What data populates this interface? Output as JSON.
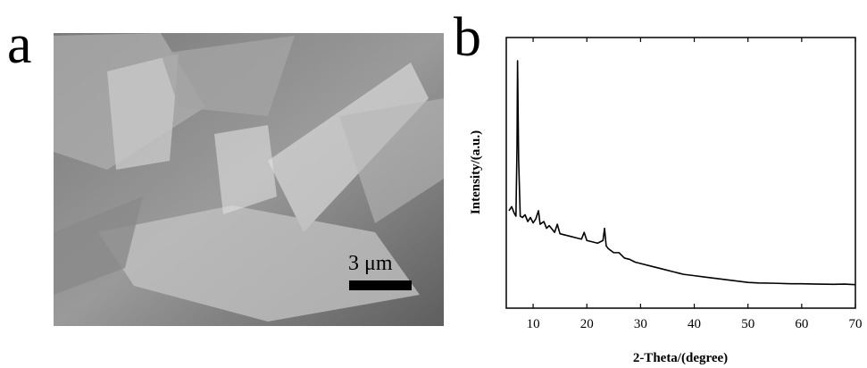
{
  "panel_labels": [
    "a",
    "b"
  ],
  "scale_bar_label": "3 μm",
  "chart_data": {
    "type": "line",
    "xlabel": "2-Theta/(degree)",
    "ylabel": "Intensity/(a.u.)",
    "xlim": [
      5,
      70
    ],
    "xticks": [
      10,
      20,
      30,
      40,
      50,
      60,
      70
    ],
    "ylim": [
      0,
      100
    ],
    "color": "#000000",
    "x": [
      5.5,
      6,
      6.5,
      6.8,
      7.0,
      7.1,
      7.3,
      7.6,
      8,
      8.5,
      9,
      9.5,
      10,
      10.5,
      11,
      11.3,
      12,
      12.5,
      13,
      14,
      14.5,
      15,
      16,
      17,
      18,
      19,
      19.5,
      20,
      21,
      22,
      23,
      23.3,
      23.6,
      24,
      25,
      26,
      27,
      28,
      29,
      30,
      32,
      34,
      36,
      38,
      40,
      42,
      44,
      46,
      48,
      50,
      52,
      55,
      58,
      60,
      63,
      66,
      68,
      70
    ],
    "values": [
      36,
      37.5,
      35,
      34,
      60,
      91.4,
      55,
      34,
      33.5,
      34.5,
      32,
      33.5,
      31.5,
      33,
      36,
      31,
      32,
      29.5,
      30.5,
      28,
      31,
      27.5,
      27,
      26.5,
      26,
      25.5,
      28,
      25,
      24.5,
      24,
      25,
      29.5,
      23,
      22,
      20.5,
      20.5,
      18.5,
      18,
      17,
      16.5,
      15.5,
      14.5,
      13.5,
      12.5,
      12,
      11.5,
      11,
      10.5,
      10,
      9.5,
      9.3,
      9.2,
      9,
      9,
      8.9,
      8.8,
      8.9,
      8.7
    ]
  }
}
